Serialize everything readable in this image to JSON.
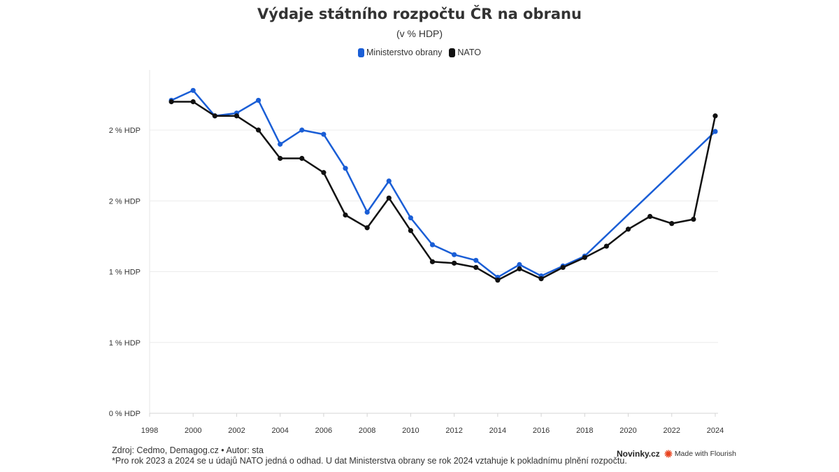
{
  "header": {
    "title": "Výdaje státního rozpočtu ČR na obranu",
    "subtitle": "(v % HDP)"
  },
  "legend": [
    {
      "name": "Ministerstvo obrany",
      "color": "#1a5ed6"
    },
    {
      "name": "NATO",
      "color": "#111111"
    }
  ],
  "chart_data": {
    "type": "line",
    "y_ticks": [
      {
        "value": 0,
        "label": "0 % HDP"
      },
      {
        "value": 0.5,
        "label": "1 % HDP"
      },
      {
        "value": 1.0,
        "label": "1 % HDP"
      },
      {
        "value": 1.5,
        "label": "2 % HDP"
      },
      {
        "value": 2.0,
        "label": "2 % HDP"
      }
    ],
    "x_ticks": [
      1998,
      2000,
      2002,
      2004,
      2006,
      2008,
      2010,
      2012,
      2014,
      2016,
      2018,
      2020,
      2022,
      2024
    ],
    "xlim": [
      1998,
      2024
    ],
    "ylim": [
      0,
      2.43
    ],
    "grid": true,
    "legend_position": "top-center",
    "series": [
      {
        "name": "Ministerstvo obrany",
        "color": "#1a5ed6",
        "x": [
          1999,
          2000,
          2001,
          2002,
          2003,
          2004,
          2005,
          2006,
          2007,
          2008,
          2009,
          2010,
          2011,
          2012,
          2013,
          2014,
          2015,
          2016,
          2017,
          2018,
          2024
        ],
        "values": [
          2.21,
          2.28,
          2.1,
          2.12,
          2.21,
          1.9,
          2.0,
          1.97,
          1.73,
          1.42,
          1.64,
          1.38,
          1.19,
          1.12,
          1.08,
          0.96,
          1.05,
          0.97,
          1.04,
          1.11,
          1.99
        ]
      },
      {
        "name": "NATO",
        "color": "#111111",
        "x": [
          1999,
          2000,
          2001,
          2002,
          2003,
          2004,
          2005,
          2006,
          2007,
          2008,
          2009,
          2010,
          2011,
          2012,
          2013,
          2014,
          2015,
          2016,
          2017,
          2018,
          2019,
          2020,
          2021,
          2022,
          2023,
          2024
        ],
        "values": [
          2.2,
          2.2,
          2.1,
          2.1,
          2.0,
          1.8,
          1.8,
          1.7,
          1.4,
          1.31,
          1.52,
          1.29,
          1.07,
          1.06,
          1.03,
          0.94,
          1.02,
          0.95,
          1.03,
          1.1,
          1.18,
          1.3,
          1.39,
          1.34,
          1.37,
          2.1
        ]
      }
    ]
  },
  "footer": {
    "source": "Zdroj: Cedmo, Demagog.cz • Autor: sta",
    "note": "*Pro rok 2023 a 2024 se u údajů NATO jedná o odhad. U dat Ministerstva obrany se rok 2024 vztahuje k pokladnímu plnění rozpočtu.",
    "brand_name": "Novinky.cz",
    "made_with": "Made with Flourish",
    "flourish_color": "#e8431f"
  }
}
